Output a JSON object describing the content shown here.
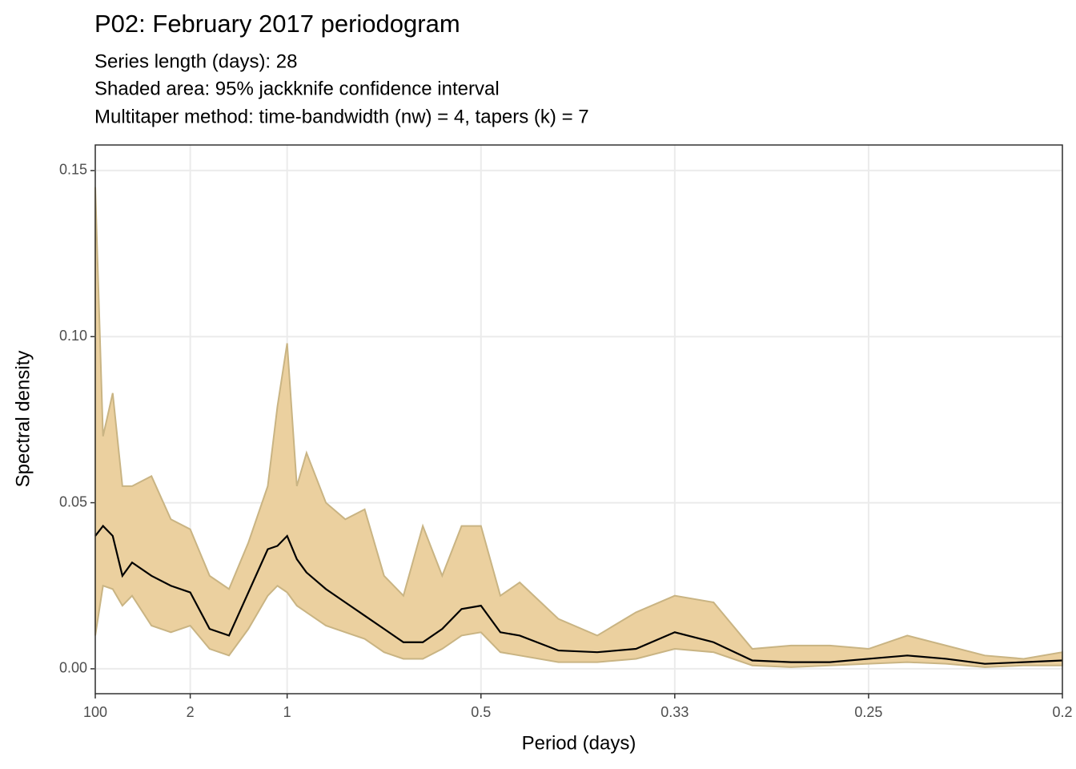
{
  "chart_data": {
    "type": "line",
    "title": "P02: February 2017 periodogram",
    "subtitle": [
      "Series length (days): 28",
      "Shaded area: 95% jackknife confidence interval",
      "Multitaper method: time-bandwidth (nw) = 4, tapers (k) = 7"
    ],
    "x_label": "Period (days)",
    "y_label": "Spectral density",
    "x": [
      0.01,
      0.05,
      0.1,
      0.15,
      0.2,
      0.3,
      0.4,
      0.5,
      0.6,
      0.7,
      0.8,
      0.9,
      0.95,
      1.0,
      1.05,
      1.1,
      1.2,
      1.3,
      1.4,
      1.5,
      1.6,
      1.7,
      1.8,
      1.9,
      2.0,
      2.1,
      2.2,
      2.4,
      2.6,
      2.8,
      3.0,
      3.2,
      3.4,
      3.6,
      3.8,
      4.0,
      4.2,
      4.4,
      4.6,
      4.8,
      5.0
    ],
    "values": [
      0.04,
      0.043,
      0.04,
      0.028,
      0.032,
      0.028,
      0.025,
      0.023,
      0.012,
      0.01,
      0.023,
      0.036,
      0.037,
      0.04,
      0.033,
      0.029,
      0.024,
      0.02,
      0.016,
      0.012,
      0.008,
      0.008,
      0.012,
      0.018,
      0.019,
      0.011,
      0.01,
      0.0055,
      0.005,
      0.006,
      0.011,
      0.008,
      0.0025,
      0.002,
      0.002,
      0.003,
      0.004,
      0.003,
      0.0015,
      0.002,
      0.0025
    ],
    "upper": [
      0.145,
      0.07,
      0.083,
      0.055,
      0.055,
      0.058,
      0.045,
      0.042,
      0.028,
      0.024,
      0.038,
      0.055,
      0.079,
      0.098,
      0.055,
      0.065,
      0.05,
      0.045,
      0.048,
      0.028,
      0.022,
      0.043,
      0.028,
      0.043,
      0.043,
      0.022,
      0.026,
      0.015,
      0.01,
      0.017,
      0.022,
      0.02,
      0.006,
      0.007,
      0.007,
      0.006,
      0.01,
      0.007,
      0.004,
      0.003,
      0.005
    ],
    "lower": [
      0.01,
      0.025,
      0.024,
      0.019,
      0.022,
      0.013,
      0.011,
      0.013,
      0.006,
      0.004,
      0.012,
      0.022,
      0.025,
      0.023,
      0.019,
      0.017,
      0.013,
      0.011,
      0.009,
      0.005,
      0.003,
      0.003,
      0.006,
      0.01,
      0.011,
      0.005,
      0.004,
      0.002,
      0.002,
      0.003,
      0.006,
      0.005,
      0.001,
      0.0005,
      0.001,
      0.0015,
      0.002,
      0.0015,
      0.0005,
      0.001,
      0.001
    ],
    "color": "#000000",
    "band_color": "#ebd09f",
    "band_edge_color": "#c9b483",
    "xlim": [
      0.01,
      5
    ],
    "ylim": [
      -0.0075,
      0.1577
    ],
    "xticks": [
      {
        "value": 0.01,
        "label": "100"
      },
      {
        "value": 0.5,
        "label": "2"
      },
      1,
      {
        "value": 2,
        "label": "0.5"
      },
      {
        "value": 3,
        "label": "0.33"
      },
      {
        "value": 4,
        "label": "0.25"
      },
      {
        "value": 5,
        "label": "0.2"
      }
    ],
    "yticks": [
      {
        "value": 0,
        "label": "0.00"
      },
      {
        "value": 0.05,
        "label": "0.05"
      },
      {
        "value": 0.1,
        "label": "0.10"
      },
      {
        "value": 0.15,
        "label": "0.15"
      }
    ],
    "grid": true
  }
}
